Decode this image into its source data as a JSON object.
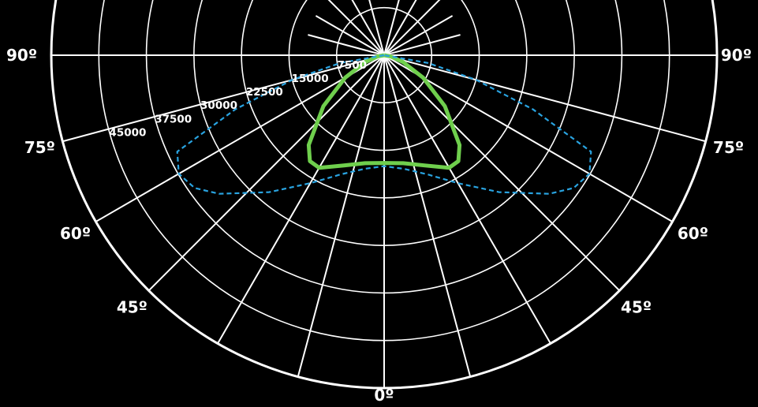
{
  "chart_data": {
    "type": "polar",
    "projection": "lower half-polar (0° straight down, ±90° horizontal)",
    "rlim": [
      0,
      52500
    ],
    "radial_ticks": [
      "7500",
      "15000",
      "22500",
      "30000",
      "37500",
      "45000"
    ],
    "radial_tick_values": [
      7500,
      15000,
      22500,
      30000,
      37500,
      45000
    ],
    "angle_labels": [
      {
        "text": "90º",
        "angle": -90
      },
      {
        "text": "75º",
        "angle": -75
      },
      {
        "text": "60º",
        "angle": -60
      },
      {
        "text": "45º",
        "angle": -45
      },
      {
        "text": "0º",
        "angle": 0
      },
      {
        "text": "45º",
        "angle": 45
      },
      {
        "text": "60º",
        "angle": 60
      },
      {
        "text": "75º",
        "angle": 75
      },
      {
        "text": "90º",
        "angle": 90
      }
    ],
    "radial_line_angles": [
      -90,
      -75,
      -60,
      -45,
      -30,
      -15,
      0,
      15,
      30,
      45,
      60,
      75,
      90
    ],
    "series": [
      {
        "style": "solid",
        "color": "#6fcf4d",
        "points": [
          [
            0,
            17000
          ],
          [
            10,
            17300
          ],
          [
            20,
            18500
          ],
          [
            30,
            20500
          ],
          [
            35,
            20400
          ],
          [
            40,
            18500
          ],
          [
            50,
            12500
          ],
          [
            60,
            7100
          ],
          [
            70,
            3200
          ],
          [
            80,
            1000
          ],
          [
            90,
            0
          ]
        ]
      },
      {
        "style": "dashed",
        "color": "#29a3e0",
        "points": [
          [
            0,
            17500
          ],
          [
            10,
            18200
          ],
          [
            20,
            20000
          ],
          [
            30,
            23300
          ],
          [
            40,
            28200
          ],
          [
            50,
            34000
          ],
          [
            55,
            36500
          ],
          [
            60,
            37400
          ],
          [
            65,
            36000
          ],
          [
            70,
            25000
          ],
          [
            75,
            15000
          ],
          [
            80,
            7000
          ],
          [
            90,
            0
          ]
        ]
      }
    ],
    "grid": true,
    "background": "#000000",
    "grid_color": "#ffffff"
  }
}
